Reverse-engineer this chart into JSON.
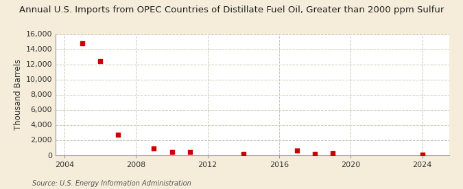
{
  "title": "Annual U.S. Imports from OPEC Countries of Distillate Fuel Oil, Greater than 2000 ppm Sulfur",
  "ylabel": "Thousand Barrels",
  "source": "Source: U.S. Energy Information Administration",
  "fig_background_color": "#f5edda",
  "plot_background_color": "#ffffff",
  "grid_color": "#c8c8b4",
  "marker_color": "#cc0000",
  "x_data": [
    2005,
    2006,
    2007,
    2009,
    2010,
    2011,
    2014,
    2017,
    2018,
    2019,
    2024
  ],
  "y_data": [
    14800,
    12400,
    2700,
    900,
    450,
    450,
    100,
    600,
    100,
    200,
    50
  ],
  "xlim": [
    2003.5,
    2025.5
  ],
  "ylim": [
    0,
    16000
  ],
  "yticks": [
    0,
    2000,
    4000,
    6000,
    8000,
    10000,
    12000,
    14000,
    16000
  ],
  "xticks": [
    2004,
    2008,
    2012,
    2016,
    2020,
    2024
  ],
  "title_fontsize": 9.5,
  "label_fontsize": 8.5,
  "tick_fontsize": 8,
  "source_fontsize": 7
}
